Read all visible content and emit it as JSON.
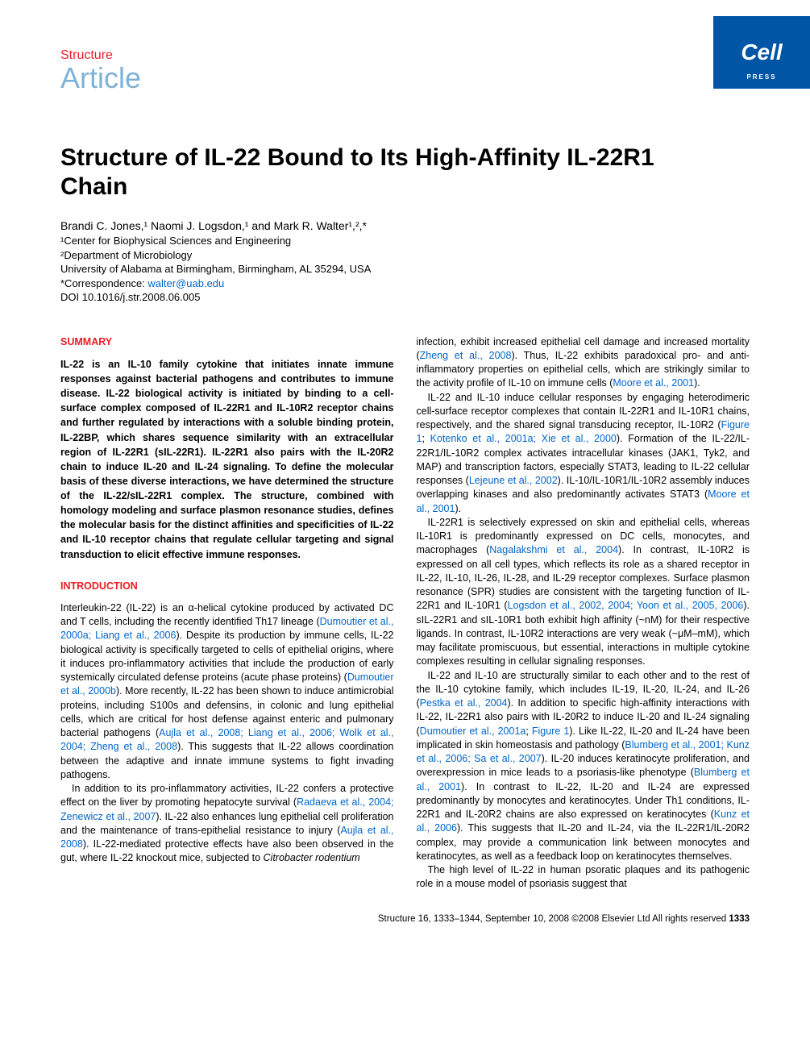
{
  "journalName": "Structure",
  "articleType": "Article",
  "cellBadge": {
    "label": "Cell",
    "sub": "PRESS"
  },
  "title": "Structure of IL-22 Bound to Its High-Affinity IL-22R1 Chain",
  "authors": "Brandi C. Jones,¹ Naomi J. Logsdon,¹ and Mark R. Walter¹,²,*",
  "affiliations": {
    "a1": "¹Center for Biophysical Sciences and Engineering",
    "a2": "²Department of Microbiology",
    "a3": "University of Alabama at Birmingham, Birmingham, AL 35294, USA",
    "a4pre": "*Correspondence: ",
    "a4link": "walter@uab.edu",
    "a5": "DOI 10.1016/j.str.2008.06.005"
  },
  "summaryHead": "SUMMARY",
  "summary": "IL-22 is an IL-10 family cytokine that initiates innate immune responses against bacterial pathogens and contributes to immune disease. IL-22 biological activity is initiated by binding to a cell-surface complex composed of IL-22R1 and IL-10R2 receptor chains and further regulated by interactions with a soluble binding protein, IL-22BP, which shares sequence similarity with an extracellular region of IL-22R1 (sIL-22R1). IL-22R1 also pairs with the IL-20R2 chain to induce IL-20 and IL-24 signaling. To define the molecular basis of these diverse interactions, we have determined the structure of the IL-22/sIL-22R1 complex. The structure, combined with homology modeling and surface plasmon resonance studies, defines the molecular basis for the distinct affinities and specificities of IL-22 and IL-10 receptor chains that regulate cellular targeting and signal transduction to elicit effective immune responses.",
  "introHead": "INTRODUCTION",
  "leftParas": [
    "Interleukin-22 (IL-22) is an α-helical cytokine produced by activated DC and T cells, including the recently identified Th17 lineage (<span class=\"ref\">Dumoutier et al., 2000a; Liang et al., 2006</span>). Despite its production by immune cells, IL-22 biological activity is specifically targeted to cells of epithelial origins, where it induces pro-inflammatory activities that include the production of early systemically circulated defense proteins (acute phase proteins) (<span class=\"ref\">Dumoutier et al., 2000b</span>). More recently, IL-22 has been shown to induce antimicrobial proteins, including S100s and defensins, in colonic and lung epithelial cells, which are critical for host defense against enteric and pulmonary bacterial pathogens (<span class=\"ref\">Aujla et al., 2008; Liang et al., 2006; Wolk et al., 2004; Zheng et al., 2008</span>). This suggests that IL-22 allows coordination between the adaptive and innate immune systems to fight invading pathogens.",
    "In addition to its pro-inflammatory activities, IL-22 confers a protective effect on the liver by promoting hepatocyte survival (<span class=\"ref\">Radaeva et al., 2004; Zenewicz et al., 2007</span>). IL-22 also enhances lung epithelial cell proliferation and the maintenance of trans-epithelial resistance to injury (<span class=\"ref\">Aujla et al., 2008</span>). IL-22-mediated protective effects have also been observed in the gut, where IL-22 knockout mice, subjected to <i>Citrobacter rodentium</i>"
  ],
  "rightParas": [
    "infection, exhibit increased epithelial cell damage and increased mortality (<span class=\"ref\">Zheng et al., 2008</span>). Thus, IL-22 exhibits paradoxical pro- and anti-inflammatory properties on epithelial cells, which are strikingly similar to the activity profile of IL-10 on immune cells (<span class=\"ref\">Moore et al., 2001</span>).",
    "IL-22 and IL-10 induce cellular responses by engaging heterodimeric cell-surface receptor complexes that contain IL-22R1 and IL-10R1 chains, respectively, and the shared signal transducing receptor, IL-10R2 (<span class=\"ref\">Figure 1</span>; <span class=\"ref\">Kotenko et al., 2001a; Xie et al., 2000</span>). Formation of the IL-22/IL-22R1/IL-10R2 complex activates intracellular kinases (JAK1, Tyk2, and MAP) and transcription factors, especially STAT3, leading to IL-22 cellular responses (<span class=\"ref\">Lejeune et al., 2002</span>). IL-10/IL-10R1/IL-10R2 assembly induces overlapping kinases and also predominantly activates STAT3 (<span class=\"ref\">Moore et al., 2001</span>).",
    "IL-22R1 is selectively expressed on skin and epithelial cells, whereas IL-10R1 is predominantly expressed on DC cells, monocytes, and macrophages (<span class=\"ref\">Nagalakshmi et al., 2004</span>). In contrast, IL-10R2 is expressed on all cell types, which reflects its role as a shared receptor in IL-22, IL-10, IL-26, IL-28, and IL-29 receptor complexes. Surface plasmon resonance (SPR) studies are consistent with the targeting function of IL-22R1 and IL-10R1 (<span class=\"ref\">Logsdon et al., 2002, 2004; Yoon et al., 2005, 2006</span>). sIL-22R1 and sIL-10R1 both exhibit high affinity (~nM) for their respective ligands. In contrast, IL-10R2 interactions are very weak (~μM–mM), which may facilitate promiscuous, but essential, interactions in multiple cytokine complexes resulting in cellular signaling responses.",
    "IL-22 and IL-10 are structurally similar to each other and to the rest of the IL-10 cytokine family, which includes IL-19, IL-20, IL-24, and IL-26 (<span class=\"ref\">Pestka et al., 2004</span>). In addition to specific high-affinity interactions with IL-22, IL-22R1 also pairs with IL-20R2 to induce IL-20 and IL-24 signaling (<span class=\"ref\">Dumoutier et al., 2001a</span>; <span class=\"ref\">Figure 1</span>). Like IL-22, IL-20 and IL-24 have been implicated in skin homeostasis and pathology (<span class=\"ref\">Blumberg et al., 2001; Kunz et al., 2006; Sa et al., 2007</span>). IL-20 induces keratinocyte proliferation, and overexpression in mice leads to a psoriasis-like phenotype (<span class=\"ref\">Blumberg et al., 2001</span>). In contrast to IL-22, IL-20 and IL-24 are expressed predominantly by monocytes and keratinocytes. Under Th1 conditions, IL-22R1 and IL-20R2 chains are also expressed on keratinocytes (<span class=\"ref\">Kunz et al., 2006</span>). This suggests that IL-20 and IL-24, via the IL-22R1/IL-20R2 complex, may provide a communication link between monocytes and keratinocytes, as well as a feedback loop on keratinocytes themselves.",
    "The high level of IL-22 in human psoratic plaques and its pathogenic role in a mouse model of psoriasis suggest that"
  ],
  "footer": {
    "text": "Structure 16, 1333–1344, September 10, 2008 ©2008 Elsevier Ltd All rights reserved ",
    "page": "1333"
  },
  "colors": {
    "brandBlue": "#0055a5",
    "accentRed": "#ed1c24",
    "lightBlue": "#7fb2d6",
    "linkBlue": "#0066cc",
    "text": "#000000",
    "background": "#ffffff"
  }
}
